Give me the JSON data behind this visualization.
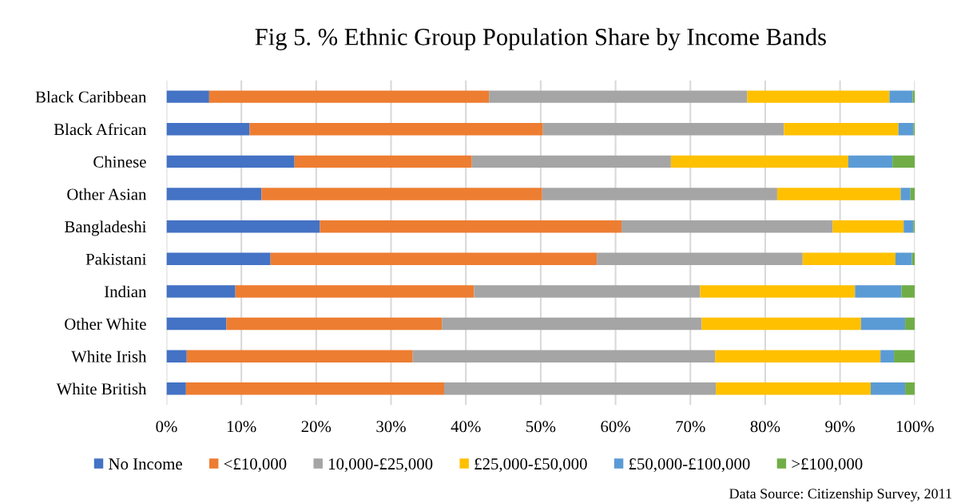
{
  "chart_data": {
    "type": "bar",
    "orientation": "horizontal",
    "stacked": true,
    "title": "Fig 5. % Ethnic Group Population Share by Income Bands",
    "categories": [
      "Black Caribbean",
      "Black African",
      "Chinese",
      "Other Asian",
      "Bangladeshi",
      "Pakistani",
      "Indian",
      "Other White",
      "White Irish",
      "White British"
    ],
    "series": [
      {
        "name": "No Income",
        "color": "#4472c4",
        "values": [
          5.7,
          11.1,
          17.1,
          12.7,
          20.5,
          13.9,
          9.2,
          8.0,
          2.7,
          2.6
        ]
      },
      {
        "name": "<£10,000",
        "color": "#ed7d31",
        "values": [
          37.4,
          39.2,
          23.7,
          37.5,
          40.3,
          43.6,
          31.9,
          28.8,
          30.2,
          34.5
        ]
      },
      {
        "name": "10,000-£25,000",
        "color": "#a5a5a5",
        "values": [
          34.5,
          32.2,
          26.6,
          31.4,
          28.2,
          27.5,
          30.2,
          34.7,
          40.4,
          36.3
        ]
      },
      {
        "name": "£25,000-£50,000",
        "color": "#ffc000",
        "values": [
          19.0,
          15.3,
          23.7,
          16.5,
          9.5,
          12.4,
          20.7,
          21.3,
          22.1,
          20.7
        ]
      },
      {
        "name": "£50,000-£100,000",
        "color": "#5b9bd5",
        "values": [
          3.1,
          2.0,
          5.9,
          1.3,
          1.3,
          2.2,
          6.2,
          5.9,
          1.8,
          4.6
        ]
      },
      {
        "name": ">£100,000",
        "color": "#70ad47",
        "values": [
          0.3,
          0.2,
          3.0,
          0.6,
          0.2,
          0.4,
          1.8,
          1.3,
          2.8,
          1.3
        ]
      }
    ],
    "xlim": [
      0,
      100
    ],
    "xticks": [
      {
        "value": 0,
        "label": "0%"
      },
      {
        "value": 10,
        "label": "10%"
      },
      {
        "value": 20,
        "label": "20%"
      },
      {
        "value": 30,
        "label": "30%"
      },
      {
        "value": 40,
        "label": "40%"
      },
      {
        "value": 50,
        "label": "50%"
      },
      {
        "value": 60,
        "label": "60%"
      },
      {
        "value": 70,
        "label": "70%"
      },
      {
        "value": 80,
        "label": "80%"
      },
      {
        "value": 90,
        "label": "90%"
      },
      {
        "value": 100,
        "label": "100%"
      }
    ],
    "grid": "x",
    "legend": "bottom",
    "annotations": [
      "Data Source: Citizenship Survey, 2011"
    ]
  }
}
